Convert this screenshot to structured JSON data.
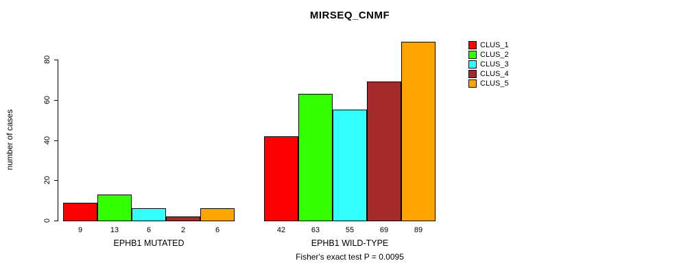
{
  "title": "MIRSEQ_CNMF",
  "ylabel": "number of cases",
  "annotation": "Fisher's exact test P = 0.0095",
  "chart_data": {
    "type": "bar",
    "title": "MIRSEQ_CNMF",
    "ylabel": "number of cases",
    "xlabel": "",
    "yticks": [
      0,
      20,
      40,
      60,
      80
    ],
    "ylim": [
      0,
      89
    ],
    "grid": false,
    "legend_position": "right",
    "series_names": [
      "CLUS_1",
      "CLUS_2",
      "CLUS_3",
      "CLUS_4",
      "CLUS_5"
    ],
    "colors": [
      "#FF0000",
      "#33FF00",
      "#33FFFF",
      "#A52A2A",
      "#FFA500"
    ],
    "groups": [
      {
        "label": "EPHB1 MUTATED",
        "values": [
          9,
          13,
          6,
          2,
          6
        ]
      },
      {
        "label": "EPHB1 WILD-TYPE",
        "values": [
          42,
          63,
          55,
          69,
          89
        ]
      }
    ],
    "annotation": "Fisher's exact test P = 0.0095"
  }
}
